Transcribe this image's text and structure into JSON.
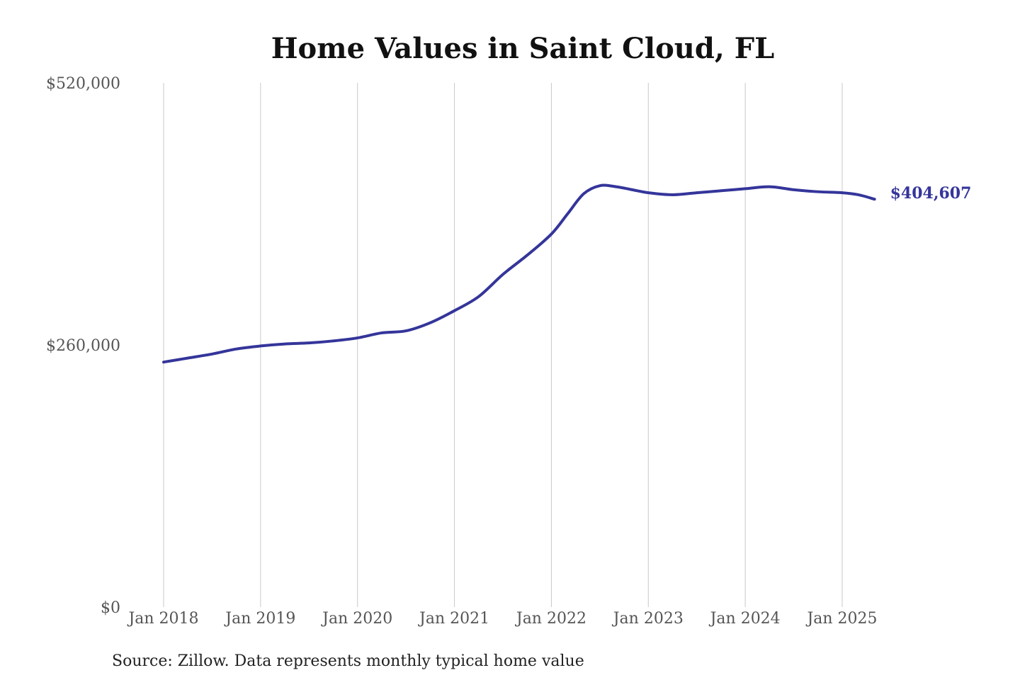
{
  "chart_data": {
    "type": "line",
    "title": "Home Values in Saint Cloud, FL",
    "source": "Source: Zillow. Data represents monthly typical home value",
    "series": [
      {
        "label": "$404,607",
        "color": "#34359a",
        "points": [
          [
            "2018-01",
            243000
          ],
          [
            "2018-04",
            247000
          ],
          [
            "2018-07",
            251000
          ],
          [
            "2018-10",
            256000
          ],
          [
            "2019-01",
            259000
          ],
          [
            "2019-04",
            261000
          ],
          [
            "2019-07",
            262000
          ],
          [
            "2019-10",
            264000
          ],
          [
            "2020-01",
            267000
          ],
          [
            "2020-04",
            272000
          ],
          [
            "2020-07",
            274000
          ],
          [
            "2020-10",
            282000
          ],
          [
            "2021-01",
            294000
          ],
          [
            "2021-04",
            308000
          ],
          [
            "2021-07",
            330000
          ],
          [
            "2021-10",
            349000
          ],
          [
            "2022-01",
            370000
          ],
          [
            "2022-03",
            390000
          ],
          [
            "2022-05",
            410000
          ],
          [
            "2022-07",
            418000
          ],
          [
            "2022-09",
            417000
          ],
          [
            "2022-11",
            414000
          ],
          [
            "2023-01",
            411000
          ],
          [
            "2023-04",
            409000
          ],
          [
            "2023-07",
            411000
          ],
          [
            "2023-10",
            413000
          ],
          [
            "2024-01",
            415000
          ],
          [
            "2024-04",
            417000
          ],
          [
            "2024-07",
            414000
          ],
          [
            "2024-10",
            412000
          ],
          [
            "2025-01",
            411000
          ],
          [
            "2025-03",
            409000
          ],
          [
            "2025-05",
            404607
          ]
        ]
      }
    ],
    "x_ticks": [
      {
        "date": "2018-01",
        "label": "Jan 2018"
      },
      {
        "date": "2019-01",
        "label": "Jan 2019"
      },
      {
        "date": "2020-01",
        "label": "Jan 2020"
      },
      {
        "date": "2021-01",
        "label": "Jan 2021"
      },
      {
        "date": "2022-01",
        "label": "Jan 2022"
      },
      {
        "date": "2023-01",
        "label": "Jan 2023"
      },
      {
        "date": "2024-01",
        "label": "Jan 2024"
      },
      {
        "date": "2025-01",
        "label": "Jan 2025"
      }
    ],
    "y_ticks": [
      {
        "value": 0,
        "label": "$0"
      },
      {
        "value": 260000,
        "label": "$260,000"
      },
      {
        "value": 520000,
        "label": "$520,000"
      }
    ],
    "ylim": [
      0,
      520000
    ],
    "grid": {
      "vertical": true,
      "horizontal": false
    },
    "gridline_color": "#c8c8c8",
    "tick_label_color": "#555555",
    "title_color": "#111111"
  }
}
